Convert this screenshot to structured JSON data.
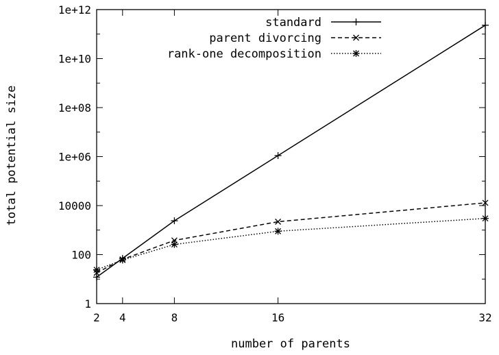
{
  "chart_data": {
    "type": "line",
    "title": "",
    "xlabel": "number of parents",
    "ylabel": "total potential size",
    "x_scale": "linear",
    "y_scale": "log10",
    "xlim": [
      2,
      32
    ],
    "ylim": [
      1,
      1000000000000
    ],
    "x_ticks": [
      2,
      4,
      8,
      16,
      32
    ],
    "x_tick_labels": [
      "2",
      "4",
      "8",
      "16",
      "32"
    ],
    "y_ticks": [
      1,
      100,
      10000,
      1000000,
      100000000,
      10000000000,
      1000000000000
    ],
    "y_tick_labels": [
      "1",
      "100",
      "10000",
      "1e+06",
      "1e+08",
      "1e+10",
      "1e+12"
    ],
    "grid": false,
    "legend_position": "top-right",
    "x": [
      2,
      4,
      8,
      16,
      32
    ],
    "series": [
      {
        "name": "standard",
        "marker": "plus",
        "dash": "solid",
        "values": [
          12,
          70,
          2400,
          1100000,
          230000000000
        ]
      },
      {
        "name": "parent divorcing",
        "marker": "x",
        "dash": "dashed",
        "values": [
          18,
          64,
          380,
          2200,
          13000
        ]
      },
      {
        "name": "rank-one decomposition",
        "marker": "star",
        "dash": "dotted",
        "values": [
          24,
          60,
          260,
          900,
          3000
        ]
      }
    ]
  }
}
